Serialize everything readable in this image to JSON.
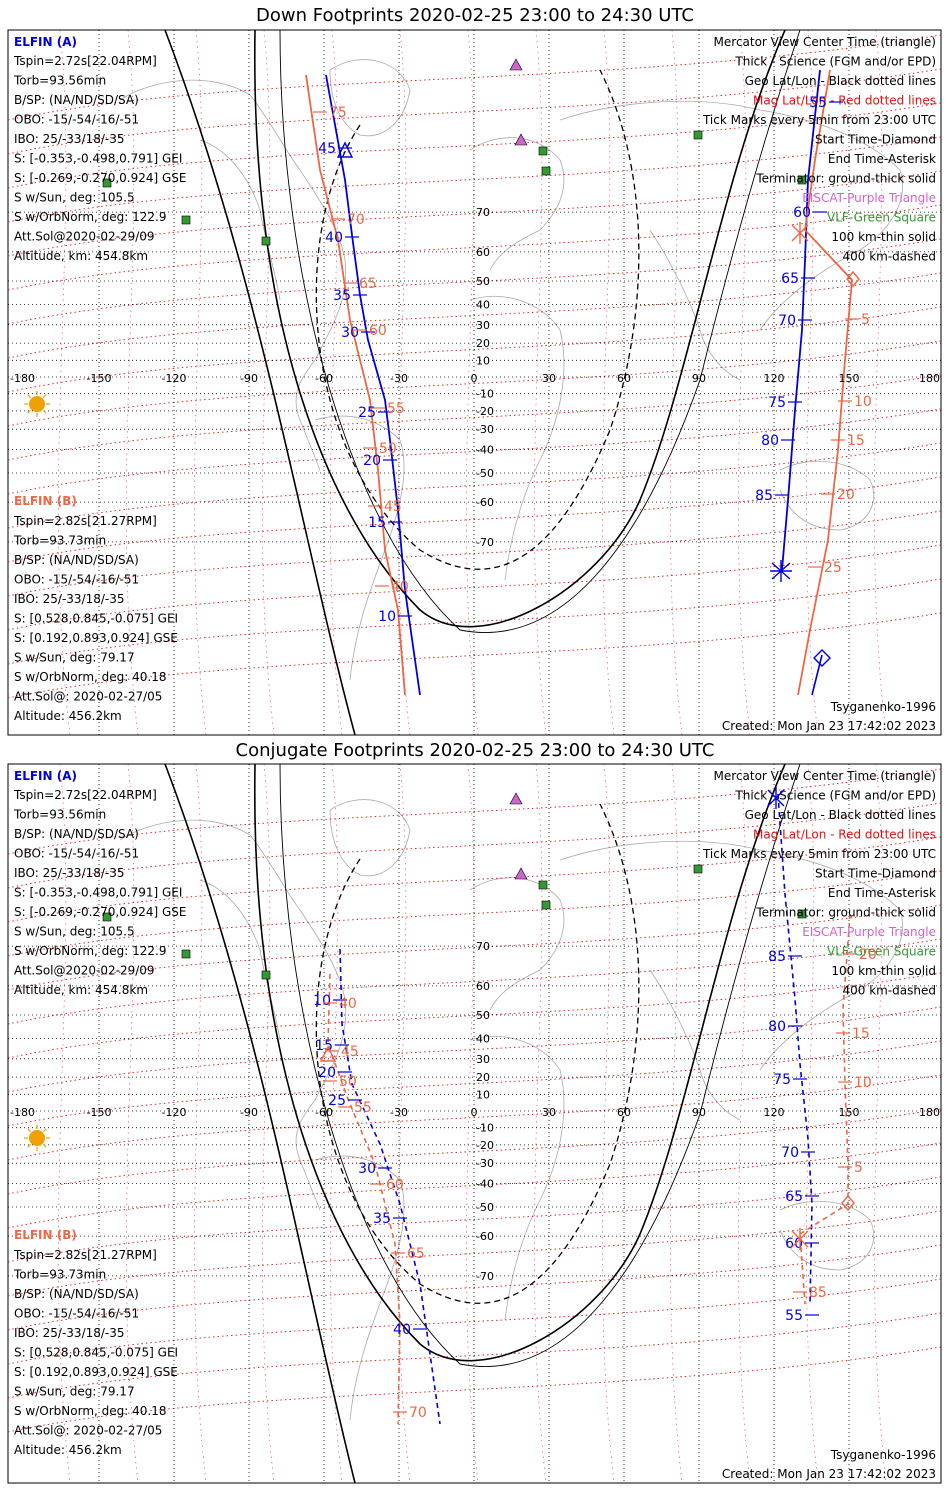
{
  "panels": [
    {
      "id": "down",
      "title": "Down Footprints 2020-02-25 23:00 to 24:30 UTC",
      "elfin_a": {
        "name": "ELFIN (A)",
        "lines": [
          "Tspin=2.72s[22.04RPM]",
          "Torb=93.56min",
          "B/SP: (NA/ND/SD/SA)",
          "OBO: -15/-54/-16/-51",
          "IBO: 25/-33/18/-35",
          "S: [-0.353,-0.498,0.791] GEI",
          "S: [-0.269,-0.270,0.924] GSE",
          "S w/Sun, deg: 105.5",
          "S w/OrbNorm, deg: 122.9",
          "Att.Sol@2020-02-29/09",
          "Altitude, km: 454.8km"
        ]
      },
      "elfin_b": {
        "name": "ELFIN (B)",
        "lines": [
          "Tspin=2.82s[21.27RPM]",
          "Torb=93.73min",
          "B/SP: (NA/ND/SD/SA)",
          "OBO: -15/-54/-16/-51",
          "IBO: 25/-33/18/-35",
          "S: [0.528,0.845,-0.075] GEI",
          "S: [0.192,0.893,0.924] GSE",
          "S w/Sun, deg: 79.17",
          "S w/OrbNorm, deg: 40.18",
          "Att.Sol@: 2020-02-27/05",
          "Altitude: 456.2km"
        ]
      },
      "legend": [
        {
          "text": "Mercator View Center Time (triangle)",
          "color": "#000000"
        },
        {
          "text": "Thick - Science (FGM and/or EPD)",
          "color": "#000000"
        },
        {
          "text": "Geo Lat/Lon - Black dotted lines",
          "color": "#000000"
        },
        {
          "text": "Mag Lat/Lon - Red dotted lines",
          "color": "#e01010"
        },
        {
          "text": "Tick Marks every 5min from 23:00 UTC",
          "color": "#000000"
        },
        {
          "text": "Start Time-Diamond",
          "color": "#000000"
        },
        {
          "text": "End Time-Asterisk",
          "color": "#000000"
        },
        {
          "text": "Terminator: ground-thick solid",
          "color": "#000000"
        },
        {
          "text": "EISCAT-Purple Triangle",
          "color": "#cc66cc"
        },
        {
          "text": "VLF-Green Square",
          "color": "#339933"
        },
        {
          "text": "100 km-thin solid",
          "color": "#000000"
        },
        {
          "text": "400 km-dashed",
          "color": "#000000"
        }
      ],
      "model": "Tsyganenko-1996",
      "created": "Created: Mon Jan 23 17:42:02 2023"
    },
    {
      "id": "conjugate",
      "title": "Conjugate Footprints 2020-02-25 23:00 to 24:30 UTC",
      "elfin_a": {
        "name": "ELFIN (A)",
        "lines": [
          "Tspin=2.72s[22.04RPM]",
          "Torb=93.56min",
          "B/SP: (NA/ND/SD/SA)",
          "OBO: -15/-54/-16/-51",
          "IBO: 25/-33/18/-35",
          "S: [-0.353,-0.498,0.791] GEI",
          "S: [-0.269,-0.270,0.924] GSE",
          "S w/Sun, deg: 105.5",
          "S w/OrbNorm, deg: 122.9",
          "Att.Sol@2020-02-29/09",
          "Altitude, km: 454.8km"
        ]
      },
      "elfin_b": {
        "name": "ELFIN (B)",
        "lines": [
          "Tspin=2.82s[21.27RPM]",
          "Torb=93.73min",
          "B/SP: (NA/ND/SD/SA)",
          "OBO: -15/-54/-16/-51",
          "IBO: 25/-33/18/-35",
          "S: [0.528,0.845,-0.075] GEI",
          "S: [0.192,0.893,0.924] GSE",
          "S w/Sun, deg: 79.17",
          "S w/OrbNorm, deg: 40.18",
          "Att.Sol@: 2020-02-27/05",
          "Altitude: 456.2km"
        ]
      },
      "legend": [
        {
          "text": "Mercator View Center Time (triangle)",
          "color": "#000000"
        },
        {
          "text": "Thick - Science (FGM and/or EPD)",
          "color": "#000000"
        },
        {
          "text": "Geo Lat/Lon - Black dotted lines",
          "color": "#000000"
        },
        {
          "text": "Mag Lat/Lon - Red dotted lines",
          "color": "#e01010"
        },
        {
          "text": "Tick Marks every 5min from 23:00 UTC",
          "color": "#000000"
        },
        {
          "text": "Start Time-Diamond",
          "color": "#000000"
        },
        {
          "text": "End Time-Asterisk",
          "color": "#000000"
        },
        {
          "text": "Terminator: ground-thick solid",
          "color": "#000000"
        },
        {
          "text": "EISCAT-Purple Triangle",
          "color": "#cc66cc"
        },
        {
          "text": "VLF-Green Square",
          "color": "#339933"
        },
        {
          "text": "100 km-thin solid",
          "color": "#000000"
        },
        {
          "text": "400 km-dashed",
          "color": "#000000"
        }
      ],
      "model": "Tsyganenko-1996",
      "created": "Created: Mon Jan 23 17:42:02 2023"
    }
  ],
  "map": {
    "lon_ticks": [
      "-180",
      "-150",
      "-120",
      "-90",
      "-60",
      "-30",
      "0",
      "30",
      "60",
      "90",
      "120",
      "150",
      "180"
    ],
    "lat_ticks": [
      "70",
      "60",
      "50",
      "40",
      "30",
      "20",
      "10",
      "-10",
      "-20",
      "-30",
      "-40",
      "-50",
      "-60",
      "-70"
    ]
  },
  "tracks": {
    "down": {
      "a_labels": [
        "45",
        "40",
        "35",
        "30",
        "25",
        "20",
        "15",
        "10",
        "55",
        "60",
        "65",
        "70",
        "75",
        "80",
        "85"
      ],
      "b_labels": [
        "75",
        "70",
        "65",
        "60",
        "55",
        "50",
        "45",
        "40",
        "5",
        "10",
        "15",
        "20",
        "25"
      ]
    },
    "conjugate": {
      "a_labels": [
        "10",
        "15",
        "20",
        "25",
        "30",
        "35",
        "40",
        "85",
        "80",
        "75",
        "70",
        "65",
        "60",
        "55"
      ],
      "b_labels": [
        "40",
        "45",
        "50",
        "55",
        "60",
        "65",
        "70",
        "20",
        "15",
        "10",
        "5",
        "85"
      ]
    }
  },
  "colors": {
    "elfin_a": "#0000dd",
    "elfin_b": "#ee6644",
    "geo_grid": "#000000",
    "mag_grid": "#e01010",
    "eiscat": "#cc66cc",
    "vlf": "#339933",
    "sun": "#f0a000",
    "coast": "#aaaaaa"
  }
}
